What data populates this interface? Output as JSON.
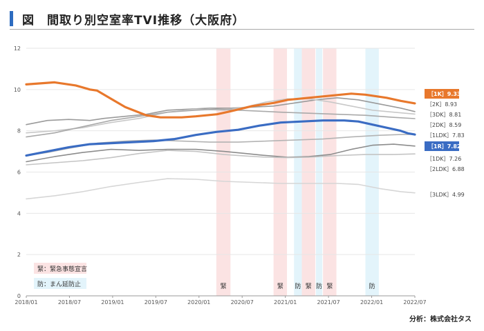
{
  "title": "図　間取り別空室率TVI推移（大阪府）",
  "source": "分析：株式会社タス",
  "colors": {
    "emergency": "#fbe3e3",
    "prevention": "#e3f4fb",
    "1K": "#e8782c",
    "1R": "#3a6cc3",
    "gray_dark": "#8c8c8c",
    "gray_mid": "#a9a9a9",
    "gray_light": "#c4c4c4",
    "gray_faint": "#d6d6d6"
  },
  "legend_notes": [
    {
      "label": "緊：緊急事態宣言",
      "type": "emergency"
    },
    {
      "label": "防：まん延防止",
      "type": "prevention"
    }
  ],
  "chart_data": {
    "type": "line",
    "title": "図　間取り別空室率TVI推移（大阪府）",
    "xlabel": "",
    "ylabel": "",
    "x_ticks": [
      "2018/01",
      "2018/07",
      "2019/01",
      "2019/07",
      "2020/01",
      "2020/07",
      "2021/01",
      "2021/07",
      "2022/01",
      "2022/07"
    ],
    "x_range": [
      0,
      55
    ],
    "ylim": [
      0,
      12
    ],
    "y_ticks": [
      0,
      2,
      4,
      6,
      8,
      10,
      12
    ],
    "grid": true,
    "bands": [
      {
        "type": "emergency",
        "start": 26.9,
        "end": 28.9,
        "label": "緊"
      },
      {
        "type": "emergency",
        "start": 35.0,
        "end": 36.9,
        "label": "緊"
      },
      {
        "type": "prevention",
        "start": 37.9,
        "end": 39.0,
        "label": "防"
      },
      {
        "type": "emergency",
        "start": 39.0,
        "end": 40.9,
        "label": "緊"
      },
      {
        "type": "prevention",
        "start": 41.0,
        "end": 41.9,
        "label": "防"
      },
      {
        "type": "emergency",
        "start": 42.0,
        "end": 43.9,
        "label": "緊"
      },
      {
        "type": "prevention",
        "start": 48.0,
        "end": 49.9,
        "label": "防"
      }
    ],
    "series": [
      {
        "name": "1K",
        "label": "［1K］9.33",
        "color": "#e8782c",
        "width": 3.2,
        "highlight": true,
        "points": [
          [
            0,
            10.25
          ],
          [
            4,
            10.35
          ],
          [
            7,
            10.2
          ],
          [
            9,
            10.0
          ],
          [
            10,
            9.95
          ],
          [
            12,
            9.55
          ],
          [
            14,
            9.15
          ],
          [
            17,
            8.75
          ],
          [
            19,
            8.65
          ],
          [
            22,
            8.65
          ],
          [
            24,
            8.7
          ],
          [
            27,
            8.8
          ],
          [
            29,
            8.95
          ],
          [
            32,
            9.2
          ],
          [
            35,
            9.35
          ],
          [
            37,
            9.5
          ],
          [
            40,
            9.6
          ],
          [
            43,
            9.7
          ],
          [
            46,
            9.8
          ],
          [
            48,
            9.75
          ],
          [
            51,
            9.6
          ],
          [
            53,
            9.45
          ],
          [
            55,
            9.33
          ]
        ]
      },
      {
        "name": "2K",
        "label": "［2K］8.93",
        "color": "#9a9a9a",
        "width": 1.6,
        "points": [
          [
            0,
            8.3
          ],
          [
            3,
            8.5
          ],
          [
            6,
            8.55
          ],
          [
            9,
            8.5
          ],
          [
            11,
            8.6
          ],
          [
            14,
            8.7
          ],
          [
            17,
            8.8
          ],
          [
            20,
            9.0
          ],
          [
            23,
            9.05
          ],
          [
            26,
            9.1
          ],
          [
            29,
            9.1
          ],
          [
            32,
            9.15
          ],
          [
            35,
            9.2
          ],
          [
            38,
            9.35
          ],
          [
            41,
            9.5
          ],
          [
            44,
            9.6
          ],
          [
            47,
            9.5
          ],
          [
            50,
            9.3
          ],
          [
            53,
            9.1
          ],
          [
            55,
            8.93
          ]
        ]
      },
      {
        "name": "3DK",
        "label": "［3DK］8.81",
        "color": "#c8c8c8",
        "width": 1.6,
        "points": [
          [
            0,
            7.9
          ],
          [
            4,
            8.0
          ],
          [
            8,
            8.15
          ],
          [
            12,
            8.4
          ],
          [
            16,
            8.6
          ],
          [
            20,
            8.9
          ],
          [
            24,
            9.05
          ],
          [
            28,
            9.0
          ],
          [
            31,
            9.15
          ],
          [
            34,
            9.4
          ],
          [
            37,
            9.55
          ],
          [
            40,
            9.55
          ],
          [
            43,
            9.4
          ],
          [
            46,
            9.2
          ],
          [
            49,
            9.0
          ],
          [
            52,
            8.9
          ],
          [
            55,
            8.81
          ]
        ]
      },
      {
        "name": "2DK",
        "label": "［2DK］8.59",
        "color": "#a9a9a9",
        "width": 1.6,
        "points": [
          [
            0,
            7.7
          ],
          [
            4,
            7.9
          ],
          [
            8,
            8.2
          ],
          [
            12,
            8.5
          ],
          [
            16,
            8.7
          ],
          [
            20,
            8.9
          ],
          [
            24,
            9.0
          ],
          [
            27,
            9.05
          ],
          [
            30,
            9.0
          ],
          [
            33,
            8.95
          ],
          [
            36,
            8.9
          ],
          [
            40,
            8.85
          ],
          [
            44,
            8.8
          ],
          [
            48,
            8.75
          ],
          [
            52,
            8.65
          ],
          [
            55,
            8.59
          ]
        ]
      },
      {
        "name": "1LDK",
        "label": "［1LDK］7.83",
        "color": "#b3b3b3",
        "width": 1.6,
        "points": [
          [
            0,
            6.8
          ],
          [
            3,
            6.95
          ],
          [
            6,
            7.15
          ],
          [
            10,
            7.4
          ],
          [
            14,
            7.5
          ],
          [
            18,
            7.55
          ],
          [
            22,
            7.5
          ],
          [
            26,
            7.45
          ],
          [
            30,
            7.45
          ],
          [
            34,
            7.5
          ],
          [
            38,
            7.55
          ],
          [
            42,
            7.6
          ],
          [
            46,
            7.7
          ],
          [
            50,
            7.78
          ],
          [
            53,
            7.82
          ],
          [
            55,
            7.83
          ]
        ]
      },
      {
        "name": "1R",
        "label": "［1R］7.82",
        "color": "#3a6cc3",
        "width": 3.2,
        "highlight": true,
        "points": [
          [
            0,
            6.8
          ],
          [
            3,
            7.0
          ],
          [
            6,
            7.2
          ],
          [
            9,
            7.35
          ],
          [
            12,
            7.4
          ],
          [
            15,
            7.45
          ],
          [
            18,
            7.5
          ],
          [
            21,
            7.6
          ],
          [
            24,
            7.8
          ],
          [
            27,
            7.95
          ],
          [
            30,
            8.05
          ],
          [
            33,
            8.25
          ],
          [
            36,
            8.4
          ],
          [
            39,
            8.45
          ],
          [
            42,
            8.5
          ],
          [
            45,
            8.5
          ],
          [
            47,
            8.45
          ],
          [
            49,
            8.3
          ],
          [
            51,
            8.15
          ],
          [
            53,
            8.0
          ],
          [
            54,
            7.88
          ],
          [
            55,
            7.82
          ]
        ]
      },
      {
        "name": "1DK",
        "label": "［1DK］7.26",
        "color": "#8c8c8c",
        "width": 1.6,
        "points": [
          [
            0,
            6.5
          ],
          [
            4,
            6.75
          ],
          [
            8,
            6.95
          ],
          [
            12,
            7.1
          ],
          [
            16,
            7.05
          ],
          [
            20,
            7.1
          ],
          [
            24,
            7.1
          ],
          [
            28,
            7.0
          ],
          [
            31,
            6.9
          ],
          [
            34,
            6.8
          ],
          [
            37,
            6.72
          ],
          [
            40,
            6.75
          ],
          [
            43,
            6.85
          ],
          [
            46,
            7.1
          ],
          [
            49,
            7.3
          ],
          [
            52,
            7.35
          ],
          [
            55,
            7.26
          ]
        ]
      },
      {
        "name": "2LDK",
        "label": "［2LDK］6.88",
        "color": "#c4c4c4",
        "width": 1.6,
        "points": [
          [
            0,
            6.35
          ],
          [
            4,
            6.45
          ],
          [
            8,
            6.55
          ],
          [
            12,
            6.7
          ],
          [
            16,
            6.9
          ],
          [
            20,
            7.05
          ],
          [
            24,
            7.0
          ],
          [
            28,
            6.85
          ],
          [
            31,
            6.78
          ],
          [
            34,
            6.72
          ],
          [
            37,
            6.7
          ],
          [
            40,
            6.72
          ],
          [
            44,
            6.8
          ],
          [
            48,
            6.85
          ],
          [
            52,
            6.85
          ],
          [
            55,
            6.88
          ]
        ]
      },
      {
        "name": "3LDK",
        "label": "［3LDK］4.99",
        "color": "#d6d6d6",
        "width": 1.6,
        "points": [
          [
            0,
            4.7
          ],
          [
            4,
            4.85
          ],
          [
            8,
            5.05
          ],
          [
            12,
            5.3
          ],
          [
            16,
            5.5
          ],
          [
            20,
            5.68
          ],
          [
            24,
            5.65
          ],
          [
            28,
            5.55
          ],
          [
            32,
            5.5
          ],
          [
            36,
            5.45
          ],
          [
            40,
            5.45
          ],
          [
            44,
            5.45
          ],
          [
            47,
            5.4
          ],
          [
            50,
            5.2
          ],
          [
            53,
            5.05
          ],
          [
            55,
            4.99
          ]
        ]
      }
    ]
  }
}
